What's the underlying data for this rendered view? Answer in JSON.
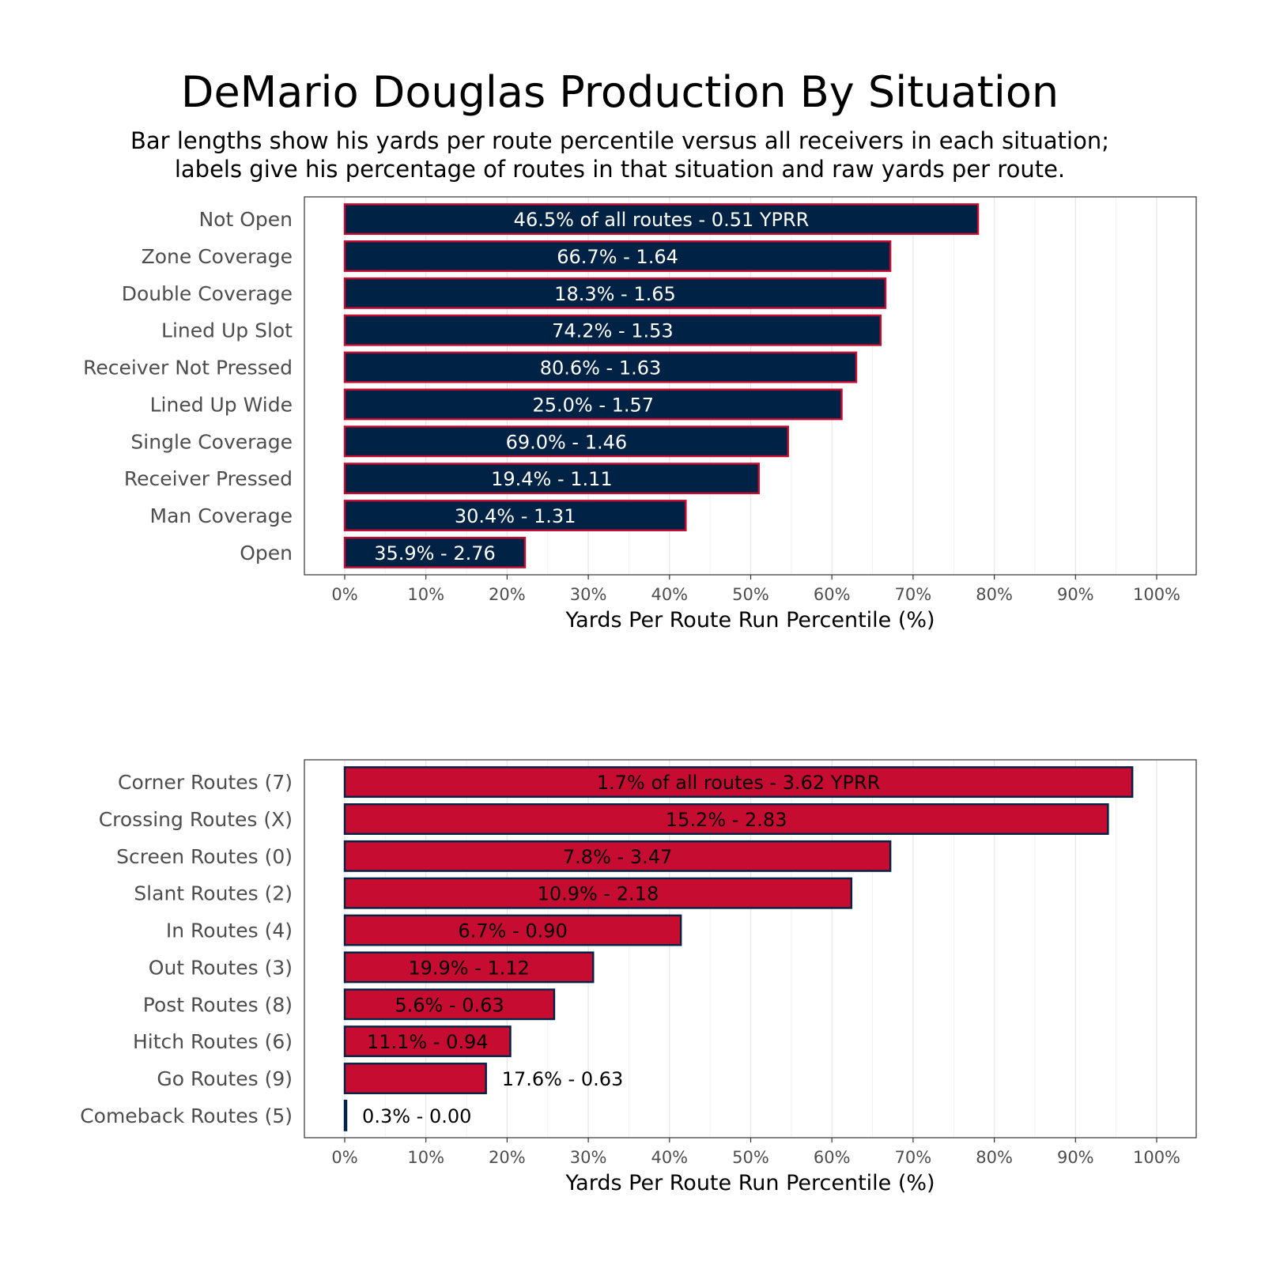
{
  "title": "DeMario Douglas Production By Situation",
  "subtitle_lines": [
    "Bar lengths show his yards per route percentile versus all receivers in each situation;",
    "labels give his percentage of routes in that situation and raw yards per route."
  ],
  "colors": {
    "navy": "#002244",
    "red": "#c60c30"
  },
  "chart_data": [
    {
      "type": "bar",
      "orientation": "horizontal",
      "xlabel": "Yards Per Route Run Percentile (%)",
      "xlim": [
        0,
        100
      ],
      "x_ticks": [
        0,
        10,
        20,
        30,
        40,
        50,
        60,
        70,
        80,
        90,
        100
      ],
      "x_tick_labels": [
        "0%",
        "10%",
        "20%",
        "30%",
        "40%",
        "50%",
        "60%",
        "70%",
        "80%",
        "90%",
        "100%"
      ],
      "grid": true,
      "fill": "#002244",
      "outline": "#c60c30",
      "label_color": "#ffffff",
      "categories": [
        "Not Open",
        "Zone Coverage",
        "Double Coverage",
        "Lined Up Slot",
        "Receiver Not Pressed",
        "Lined Up Wide",
        "Single Coverage",
        "Receiver Pressed",
        "Man Coverage",
        "Open"
      ],
      "values": [
        78,
        67.2,
        66.6,
        66,
        63,
        61.2,
        54.6,
        51,
        42,
        22.2
      ],
      "labels": [
        "46.5% of all routes - 0.51 YPRR",
        "66.7% - 1.64",
        "18.3% - 1.65",
        "74.2% - 1.53",
        "80.6% - 1.63",
        "25.0% - 1.57",
        "69.0% - 1.46",
        "19.4% - 1.11",
        "30.4% - 1.31",
        "35.9% - 2.76"
      ]
    },
    {
      "type": "bar",
      "orientation": "horizontal",
      "xlabel": "Yards Per Route Run Percentile (%)",
      "xlim": [
        0,
        100
      ],
      "x_ticks": [
        0,
        10,
        20,
        30,
        40,
        50,
        60,
        70,
        80,
        90,
        100
      ],
      "x_tick_labels": [
        "0%",
        "10%",
        "20%",
        "30%",
        "40%",
        "50%",
        "60%",
        "70%",
        "80%",
        "90%",
        "100%"
      ],
      "grid": true,
      "fill": "#c60c30",
      "outline": "#002244",
      "label_color": "#000000",
      "categories": [
        "Corner Routes (7)",
        "Crossing Routes (X)",
        "Screen Routes (0)",
        "Slant Routes (2)",
        "In Routes (4)",
        "Out Routes (3)",
        "Post Routes (8)",
        "Hitch Routes (6)",
        "Go Routes (9)",
        "Comeback Routes (5)"
      ],
      "values": [
        97,
        94,
        67.2,
        62.4,
        41.4,
        30.6,
        25.8,
        20.4,
        17.4,
        0.2
      ],
      "labels": [
        "1.7% of all routes - 3.62 YPRR",
        "15.2% - 2.83",
        "7.8% - 3.47",
        "10.9% - 2.18",
        "6.7% - 0.90",
        "19.9% - 1.12",
        "5.6% - 0.63",
        "11.1% - 0.94",
        "17.6% - 0.63",
        "0.3% - 0.00"
      ],
      "label_outside": [
        false,
        false,
        false,
        false,
        false,
        false,
        false,
        false,
        true,
        true
      ]
    }
  ]
}
